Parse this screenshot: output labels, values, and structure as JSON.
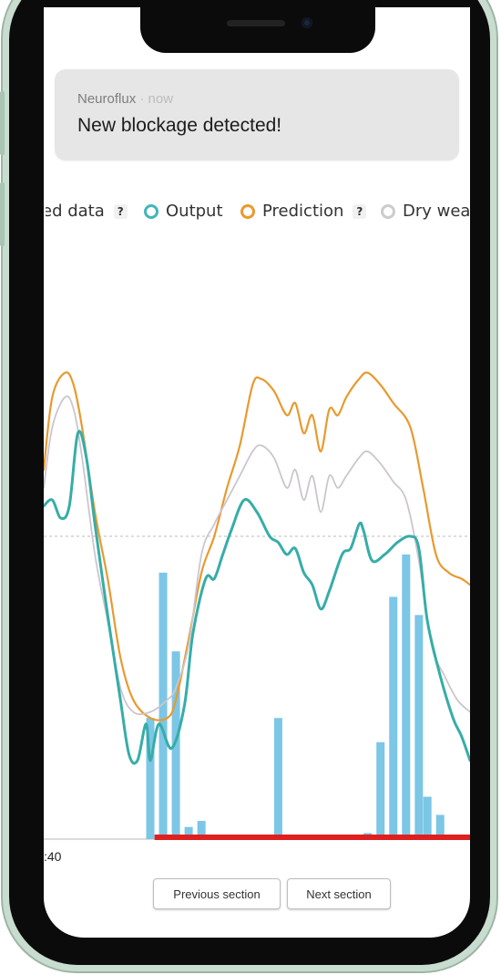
{
  "notification": {
    "app": "Neuroflux",
    "separator": "·",
    "time": "now",
    "message": "New blockage detected!"
  },
  "legend": {
    "items": [
      {
        "label": "ed data",
        "color": "#2a8bd0",
        "help": "?",
        "partial": true
      },
      {
        "label": "Output",
        "color": "#43b6b9",
        "help": ""
      },
      {
        "label": "Prediction",
        "color": "#e89a2f",
        "help": "?"
      },
      {
        "label": "Dry weat",
        "color": "#cccccc",
        "help": "",
        "partial": true
      }
    ]
  },
  "chart_data": {
    "type": "line",
    "x_tick_labels": [
      ":40"
    ],
    "colors": {
      "prediction": "#e89a2f",
      "dry_weather": "#cdc5ce",
      "output": "#36ada8",
      "bars": "#7cc6e6",
      "blockage": "#e01f1f",
      "threshold": "#bbbbbb"
    },
    "series": [
      {
        "key": "prediction",
        "values": [
          [
            0,
            0.61
          ],
          [
            0.02,
            0.73
          ],
          [
            0.05,
            0.77
          ],
          [
            0.07,
            0.75
          ],
          [
            0.09,
            0.68
          ],
          [
            0.12,
            0.54
          ],
          [
            0.15,
            0.43
          ],
          [
            0.18,
            0.3
          ],
          [
            0.21,
            0.23
          ],
          [
            0.25,
            0.2
          ],
          [
            0.29,
            0.2
          ],
          [
            0.31,
            0.23
          ],
          [
            0.34,
            0.33
          ],
          [
            0.37,
            0.44
          ],
          [
            0.4,
            0.5
          ],
          [
            0.43,
            0.58
          ],
          [
            0.46,
            0.65
          ],
          [
            0.49,
            0.75
          ],
          [
            0.51,
            0.76
          ],
          [
            0.54,
            0.74
          ],
          [
            0.57,
            0.7
          ],
          [
            0.59,
            0.72
          ],
          [
            0.61,
            0.67
          ],
          [
            0.63,
            0.7
          ],
          [
            0.65,
            0.64
          ],
          [
            0.67,
            0.71
          ],
          [
            0.69,
            0.7
          ],
          [
            0.71,
            0.73
          ],
          [
            0.74,
            0.76
          ],
          [
            0.76,
            0.77
          ],
          [
            0.79,
            0.75
          ],
          [
            0.82,
            0.72
          ],
          [
            0.86,
            0.68
          ],
          [
            0.89,
            0.58
          ],
          [
            0.92,
            0.47
          ],
          [
            0.95,
            0.44
          ],
          [
            0.98,
            0.43
          ],
          [
            1,
            0.42
          ]
        ]
      },
      {
        "key": "dry_weather",
        "values": [
          [
            0,
            0.58
          ],
          [
            0.02,
            0.68
          ],
          [
            0.05,
            0.73
          ],
          [
            0.07,
            0.71
          ],
          [
            0.09,
            0.63
          ],
          [
            0.12,
            0.47
          ],
          [
            0.15,
            0.36
          ],
          [
            0.18,
            0.25
          ],
          [
            0.21,
            0.21
          ],
          [
            0.25,
            0.21
          ],
          [
            0.29,
            0.23
          ],
          [
            0.31,
            0.25
          ],
          [
            0.34,
            0.32
          ],
          [
            0.37,
            0.47
          ],
          [
            0.4,
            0.52
          ],
          [
            0.43,
            0.56
          ],
          [
            0.46,
            0.6
          ],
          [
            0.49,
            0.64
          ],
          [
            0.51,
            0.65
          ],
          [
            0.54,
            0.63
          ],
          [
            0.57,
            0.58
          ],
          [
            0.59,
            0.61
          ],
          [
            0.61,
            0.56
          ],
          [
            0.63,
            0.6
          ],
          [
            0.65,
            0.54
          ],
          [
            0.67,
            0.6
          ],
          [
            0.69,
            0.58
          ],
          [
            0.71,
            0.6
          ],
          [
            0.74,
            0.63
          ],
          [
            0.76,
            0.64
          ],
          [
            0.79,
            0.62
          ],
          [
            0.82,
            0.59
          ],
          [
            0.85,
            0.56
          ],
          [
            0.88,
            0.46
          ],
          [
            0.91,
            0.32
          ],
          [
            0.94,
            0.27
          ],
          [
            0.97,
            0.23
          ],
          [
            1,
            0.21
          ]
        ]
      },
      {
        "key": "output",
        "values": [
          [
            0,
            0.55
          ],
          [
            0.02,
            0.56
          ],
          [
            0.04,
            0.53
          ],
          [
            0.06,
            0.55
          ],
          [
            0.08,
            0.67
          ],
          [
            0.1,
            0.63
          ],
          [
            0.12,
            0.52
          ],
          [
            0.15,
            0.37
          ],
          [
            0.18,
            0.23
          ],
          [
            0.2,
            0.14
          ],
          [
            0.22,
            0.13
          ],
          [
            0.24,
            0.19
          ],
          [
            0.25,
            0.13
          ],
          [
            0.27,
            0.19
          ],
          [
            0.3,
            0.15
          ],
          [
            0.33,
            0.22
          ],
          [
            0.35,
            0.34
          ],
          [
            0.38,
            0.43
          ],
          [
            0.4,
            0.43
          ],
          [
            0.42,
            0.47
          ],
          [
            0.44,
            0.51
          ],
          [
            0.47,
            0.56
          ],
          [
            0.5,
            0.54
          ],
          [
            0.53,
            0.5
          ],
          [
            0.55,
            0.49
          ],
          [
            0.57,
            0.47
          ],
          [
            0.59,
            0.48
          ],
          [
            0.61,
            0.44
          ],
          [
            0.63,
            0.42
          ],
          [
            0.65,
            0.38
          ],
          [
            0.67,
            0.41
          ],
          [
            0.7,
            0.47
          ],
          [
            0.72,
            0.48
          ],
          [
            0.74,
            0.52
          ],
          [
            0.75,
            0.51
          ],
          [
            0.77,
            0.46
          ],
          [
            0.8,
            0.47
          ],
          [
            0.83,
            0.49
          ],
          [
            0.86,
            0.5
          ],
          [
            0.88,
            0.48
          ],
          [
            0.9,
            0.36
          ],
          [
            0.93,
            0.27
          ],
          [
            0.96,
            0.2
          ],
          [
            0.98,
            0.17
          ],
          [
            1,
            0.13
          ]
        ]
      }
    ],
    "bars": [
      [
        0.25,
        0.2
      ],
      [
        0.28,
        0.44
      ],
      [
        0.31,
        0.31
      ],
      [
        0.34,
        0.02
      ],
      [
        0.37,
        0.03
      ],
      [
        0.55,
        0.2
      ],
      [
        0.76,
        0.01
      ],
      [
        0.79,
        0.16
      ],
      [
        0.82,
        0.4
      ],
      [
        0.85,
        0.47
      ],
      [
        0.88,
        0.37
      ],
      [
        0.9,
        0.07
      ],
      [
        0.93,
        0.04
      ]
    ],
    "threshold": 0.5,
    "blockage_range": [
      0.26,
      1.0
    ]
  },
  "buttons": {
    "previous": "Previous section",
    "next": "Next section"
  }
}
